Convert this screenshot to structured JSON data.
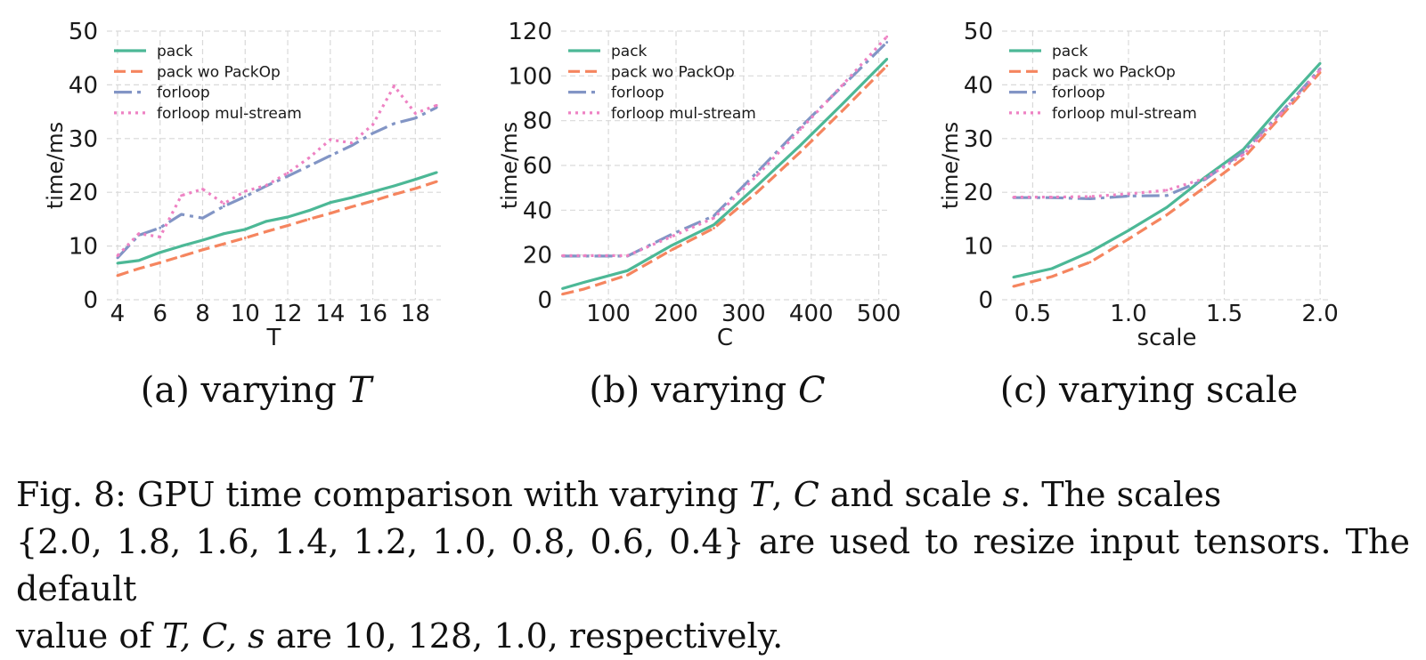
{
  "colors": {
    "pack": "#4cb896",
    "pack_wo_packop": "#f5855f",
    "forloop": "#8295c5",
    "forloop_mul_stream": "#ee82c3",
    "grid": "#d9d9d9"
  },
  "chart_data": [
    {
      "type": "line",
      "subcaption": {
        "prefix": "(a) varying ",
        "var": "T"
      },
      "xlabel": "T",
      "ylabel": "time/ms",
      "xlim": [
        3.5,
        19.2
      ],
      "ylim": [
        0,
        50
      ],
      "xticks": [
        4,
        6,
        8,
        10,
        12,
        14,
        16,
        18
      ],
      "xticklabels": [
        "4",
        "6",
        "8",
        "10",
        "12",
        "14",
        "16",
        "18"
      ],
      "yticks": [
        0,
        10,
        20,
        30,
        40,
        50
      ],
      "yticklabels": [
        "0",
        "10",
        "20",
        "30",
        "40",
        "50"
      ],
      "grid": true,
      "legend_position": "top-left",
      "x": [
        4,
        5,
        6,
        7,
        8,
        9,
        10,
        11,
        12,
        13,
        14,
        15,
        16,
        17,
        18,
        19
      ],
      "series": [
        {
          "name": "pack",
          "values": [
            6.8,
            7.3,
            8.8,
            10.0,
            11.1,
            12.3,
            13.1,
            14.6,
            15.4,
            16.6,
            18.1,
            19.0,
            20.1,
            21.2,
            22.4,
            23.7
          ]
        },
        {
          "name": "pack wo PackOp",
          "values": [
            4.5,
            5.8,
            6.9,
            8.1,
            9.3,
            10.4,
            11.5,
            12.7,
            13.8,
            15.0,
            16.1,
            17.3,
            18.4,
            19.6,
            20.7,
            22.0
          ]
        },
        {
          "name": "forloop",
          "values": [
            7.8,
            12.0,
            13.4,
            15.9,
            15.2,
            17.4,
            19.2,
            21.2,
            23.0,
            24.9,
            26.8,
            28.7,
            31.0,
            32.8,
            33.8,
            35.8
          ]
        },
        {
          "name": "forloop mul-stream",
          "values": [
            8.2,
            12.3,
            11.7,
            19.4,
            20.6,
            17.9,
            20.2,
            21.3,
            23.6,
            26.4,
            29.8,
            29.2,
            32.6,
            39.8,
            34.7,
            36.2
          ]
        }
      ]
    },
    {
      "type": "line",
      "subcaption": {
        "prefix": "(b) varying ",
        "var": "C"
      },
      "xlabel": "C",
      "ylabel": "time/ms",
      "xlim": [
        30,
        515
      ],
      "ylim": [
        0,
        120
      ],
      "xticks": [
        100,
        200,
        300,
        400,
        500
      ],
      "xticklabels": [
        "100",
        "200",
        "300",
        "400",
        "500"
      ],
      "yticks": [
        0,
        20,
        40,
        60,
        80,
        100,
        120
      ],
      "yticklabels": [
        "0",
        "20",
        "40",
        "60",
        "80",
        "100",
        "120"
      ],
      "grid": true,
      "legend_position": "top-left",
      "x": [
        32,
        64,
        128,
        192,
        256,
        320,
        384,
        448,
        512
      ],
      "series": [
        {
          "name": "pack",
          "values": [
            5.0,
            7.8,
            13.0,
            24.0,
            33.5,
            51.0,
            69.0,
            88.0,
            107.5
          ]
        },
        {
          "name": "pack wo PackOp",
          "values": [
            2.5,
            4.8,
            11.0,
            22.0,
            32.0,
            48.0,
            66.0,
            85.0,
            104.5
          ]
        },
        {
          "name": "forloop",
          "values": [
            19.5,
            19.5,
            19.5,
            29.0,
            37.5,
            57.0,
            77.0,
            96.0,
            115.0
          ]
        },
        {
          "name": "forloop mul-stream",
          "values": [
            19.7,
            19.7,
            19.7,
            28.0,
            36.5,
            55.5,
            76.0,
            96.5,
            117.5
          ]
        }
      ]
    },
    {
      "type": "line",
      "subcaption": {
        "prefix": "(c) varying scale",
        "var": ""
      },
      "xlabel": "scale",
      "ylabel": "time/ms",
      "xlim": [
        0.34,
        2.06
      ],
      "ylim": [
        0,
        50
      ],
      "xticks": [
        0.5,
        1.0,
        1.5,
        2.0
      ],
      "xticklabels": [
        "0.5",
        "1.0",
        "1.5",
        "2.0"
      ],
      "yticks": [
        0,
        10,
        20,
        30,
        40,
        50
      ],
      "yticklabels": [
        "0",
        "10",
        "20",
        "30",
        "40",
        "50"
      ],
      "grid": true,
      "legend_position": "top-left",
      "x": [
        0.4,
        0.6,
        0.8,
        1.0,
        1.2,
        1.4,
        1.6,
        1.8,
        2.0
      ],
      "series": [
        {
          "name": "pack",
          "values": [
            4.2,
            5.8,
            8.9,
            12.9,
            17.2,
            22.8,
            28.0,
            36.2,
            44.0
          ]
        },
        {
          "name": "pack wo PackOp",
          "values": [
            2.5,
            4.3,
            7.0,
            11.3,
            15.8,
            21.0,
            26.3,
            34.3,
            42.3
          ]
        },
        {
          "name": "forloop",
          "values": [
            19.0,
            19.0,
            18.8,
            19.3,
            19.4,
            22.4,
            27.5,
            35.0,
            43.0
          ]
        },
        {
          "name": "forloop mul-stream",
          "values": [
            19.1,
            19.1,
            19.2,
            19.7,
            20.4,
            22.6,
            27.0,
            34.8,
            42.8
          ]
        }
      ]
    }
  ],
  "caption": {
    "line1": {
      "a": "Fig. 8: GPU time comparison with varying ",
      "v1": "T",
      "b": ", ",
      "v2": "C",
      "c": " and scale ",
      "v3": "s",
      "d": ". The scales"
    },
    "line2": {
      "a": "{2.0, 1.8, 1.6, 1.4, 1.2, 1.0, 0.8, 0.6, 0.4} are used to resize input tensors. The default"
    },
    "line3": {
      "a": "value of ",
      "v1": "T, C, s",
      "b": " are 10, 128, 1.0, respectively."
    }
  }
}
